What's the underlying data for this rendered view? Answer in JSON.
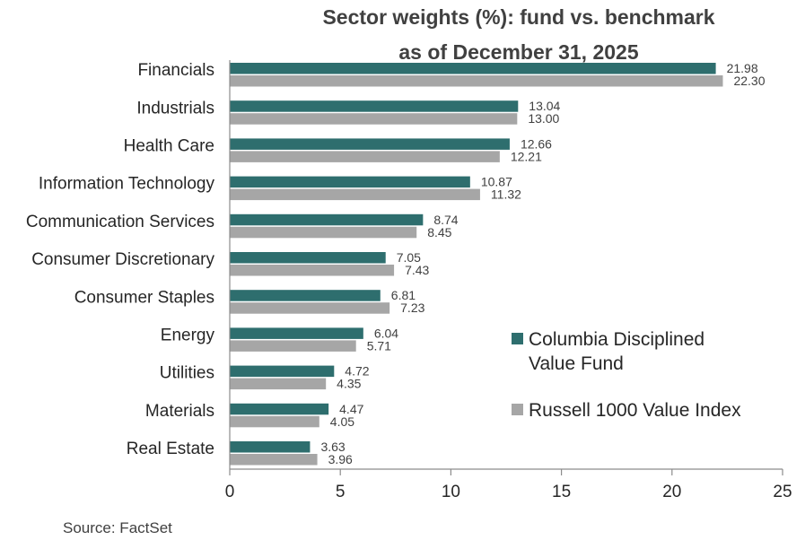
{
  "chart_data": {
    "type": "bar",
    "orientation": "horizontal",
    "title": [
      "Sector weights (%): fund vs. benchmark",
      "as of December 31, 2025"
    ],
    "categories": [
      "Financials",
      "Industrials",
      "Health Care",
      "Information Technology",
      "Communication Services",
      "Consumer Discretionary",
      "Consumer Staples",
      "Energy",
      "Utilities",
      "Materials",
      "Real Estate"
    ],
    "series": [
      {
        "name": "Columbia Disciplined Value Fund",
        "legend_lines": [
          "Columbia Disciplined",
          "Value Fund"
        ],
        "color": "#2e6e6e",
        "values": [
          21.98,
          13.04,
          12.66,
          10.87,
          8.74,
          7.05,
          6.81,
          6.04,
          4.72,
          4.47,
          3.63
        ],
        "labels": [
          "21.98",
          "13.04",
          "12.66",
          "10.87",
          "8.74",
          "7.05",
          "6.81",
          "6.04",
          "4.72",
          "4.47",
          "3.63"
        ]
      },
      {
        "name": "Russell 1000 Value Index",
        "legend_lines": [
          "Russell 1000 Value Index"
        ],
        "color": "#a6a6a6",
        "values": [
          22.3,
          13.0,
          12.21,
          11.32,
          8.45,
          7.43,
          7.23,
          5.71,
          4.35,
          4.05,
          3.96
        ],
        "labels": [
          "22.30",
          "13.00",
          "12.21",
          "11.32",
          "8.45",
          "7.43",
          "7.23",
          "5.71",
          "4.35",
          "4.05",
          "3.96"
        ]
      }
    ],
    "xlim": [
      0,
      25
    ],
    "xticks": [
      "0",
      "5",
      "10",
      "15",
      "20",
      "25"
    ],
    "xlabel": "",
    "ylabel": "",
    "grid": false,
    "legend_position": "right"
  },
  "source": "Source: FactSet"
}
